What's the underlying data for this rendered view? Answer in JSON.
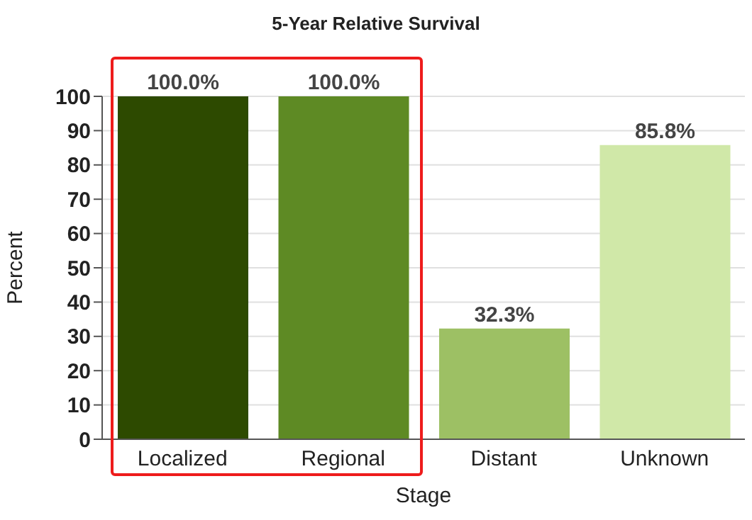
{
  "chart_data": {
    "type": "bar",
    "title": "5-Year Relative Survival",
    "xlabel": "Stage",
    "ylabel": "Percent",
    "categories": [
      "Localized",
      "Regional",
      "Distant",
      "Unknown"
    ],
    "values": [
      100.0,
      100.0,
      32.3,
      85.8
    ],
    "colors": [
      "#2d4a00",
      "#5e8a24",
      "#9dc064",
      "#d0e8a8"
    ],
    "value_labels": [
      "100.0%",
      "100.0%",
      "32.3%",
      "85.8%"
    ],
    "ylim": [
      0,
      100
    ],
    "yticks": [
      0,
      10,
      20,
      30,
      40,
      50,
      60,
      70,
      80,
      90,
      100
    ],
    "grid": "y"
  }
}
